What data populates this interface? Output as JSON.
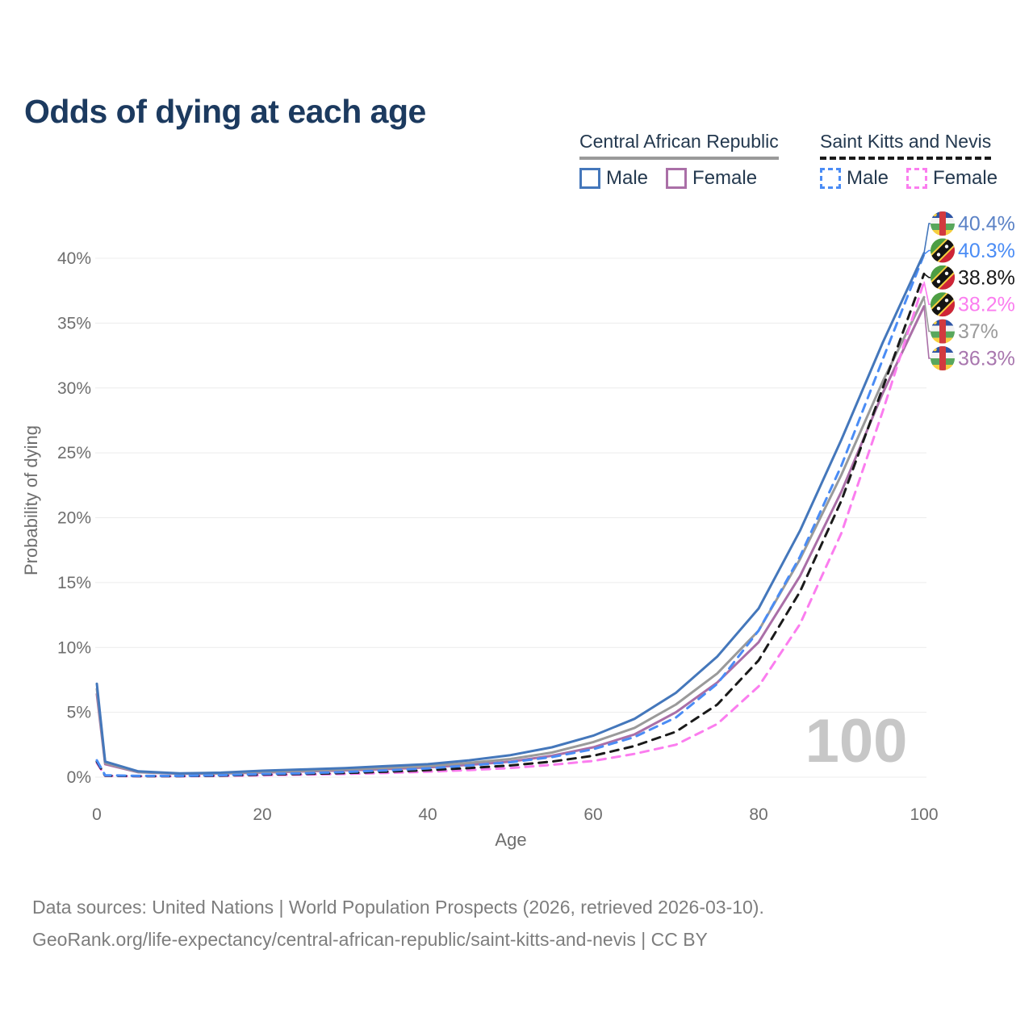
{
  "title": "Odds of dying at each age",
  "legend": {
    "car": {
      "name": "Central African Republic",
      "male_label": "Male",
      "female_label": "Female",
      "underline_color": "#9a9a9a",
      "male_color": "#4477bb",
      "female_color": "#aa6fa7",
      "line_style": "solid"
    },
    "skn": {
      "name": "Saint Kitts and Nevis",
      "male_label": "Male",
      "female_label": "Female",
      "underline_color": "#1a1a1a",
      "male_color": "#4a8cf5",
      "female_color": "#fb7def",
      "line_style": "dashed"
    }
  },
  "watermark": "100",
  "chart_data": {
    "type": "line",
    "title": "Odds of dying at each age",
    "xlabel": "Age",
    "ylabel": "Probability of dying",
    "x_ticks": [
      0,
      20,
      40,
      60,
      80,
      100
    ],
    "y_tick_labels": [
      "0%",
      "5%",
      "10%",
      "15%",
      "20%",
      "25%",
      "30%",
      "35%",
      "40%"
    ],
    "y_tick_values": [
      0,
      5,
      10,
      15,
      20,
      25,
      30,
      35,
      40
    ],
    "xlim": [
      0,
      100
    ],
    "ylim_pct": [
      0,
      42
    ],
    "grid": true,
    "legend_position": "top-right",
    "ages": [
      0,
      1,
      5,
      10,
      15,
      20,
      25,
      30,
      35,
      40,
      45,
      50,
      55,
      60,
      65,
      70,
      75,
      80,
      85,
      90,
      95,
      100
    ],
    "series": [
      {
        "name": "Central African Republic Female",
        "country": "car",
        "sex": "female",
        "color": "#aa6fa7",
        "dash": "solid",
        "end_label": "36.3%",
        "end_label_color": "#a876ae",
        "label_row": 5,
        "values": [
          6.4,
          1.0,
          0.38,
          0.26,
          0.28,
          0.36,
          0.44,
          0.52,
          0.62,
          0.75,
          0.95,
          1.2,
          1.65,
          2.3,
          3.3,
          5.0,
          7.3,
          10.4,
          15.5,
          22.0,
          29.6,
          36.3
        ]
      },
      {
        "name": "Central African Republic Both sexes",
        "country": "car",
        "sex": "both",
        "color": "#9a9a9a",
        "dash": "solid",
        "end_label": "37%",
        "end_label_color": "#9a9a9a",
        "label_row": 4,
        "values": [
          6.8,
          1.1,
          0.4,
          0.28,
          0.3,
          0.42,
          0.5,
          0.6,
          0.72,
          0.85,
          1.1,
          1.4,
          1.9,
          2.7,
          3.8,
          5.6,
          8.0,
          11.3,
          16.8,
          23.3,
          30.5,
          37.0
        ]
      },
      {
        "name": "Saint Kitts and Nevis Female",
        "country": "skn",
        "sex": "female",
        "color": "#fb7def",
        "dash": "dashed",
        "end_label": "38.2%",
        "end_label_color": "#fb7def",
        "label_row": 3,
        "values": [
          1.1,
          0.1,
          0.07,
          0.07,
          0.1,
          0.15,
          0.2,
          0.25,
          0.33,
          0.42,
          0.55,
          0.7,
          0.95,
          1.25,
          1.8,
          2.5,
          4.1,
          7.0,
          11.8,
          18.8,
          28.2,
          38.2
        ]
      },
      {
        "name": "Saint Kitts and Nevis Both sexes",
        "country": "skn",
        "sex": "both",
        "color": "#1a1a1a",
        "dash": "dashed",
        "end_label": "38.8%",
        "end_label_color": "#1a1a1a",
        "label_row": 2,
        "values": [
          1.2,
          0.12,
          0.08,
          0.08,
          0.12,
          0.2,
          0.25,
          0.32,
          0.42,
          0.54,
          0.7,
          0.9,
          1.2,
          1.65,
          2.4,
          3.5,
          5.6,
          9.0,
          14.3,
          21.3,
          30.0,
          38.8
        ]
      },
      {
        "name": "Saint Kitts and Nevis Male",
        "country": "skn",
        "sex": "male",
        "color": "#4a8cf5",
        "dash": "dashed",
        "end_label": "40.3%",
        "end_label_color": "#4a8cf5",
        "label_row": 1,
        "values": [
          1.3,
          0.15,
          0.1,
          0.1,
          0.15,
          0.25,
          0.3,
          0.4,
          0.52,
          0.68,
          0.9,
          1.15,
          1.55,
          2.15,
          3.1,
          4.6,
          7.2,
          11.3,
          17.0,
          24.0,
          32.2,
          40.3
        ]
      },
      {
        "name": "Central African Republic Male",
        "country": "car",
        "sex": "male",
        "color": "#4477bb",
        "dash": "solid",
        "end_label": "40.4%",
        "end_label_color": "#5b82c6",
        "label_row": 0,
        "values": [
          7.2,
          1.2,
          0.45,
          0.3,
          0.35,
          0.5,
          0.6,
          0.7,
          0.85,
          1.0,
          1.3,
          1.7,
          2.3,
          3.2,
          4.5,
          6.5,
          9.3,
          13.0,
          19.0,
          26.0,
          33.5,
          40.4
        ]
      }
    ]
  },
  "footer": {
    "line1": "Data sources: United Nations | World Population Prospects (2026, retrieved 2026-03-10).",
    "line2": "GeoRank.org/life-expectancy/central-african-republic/saint-kitts-and-nevis | CC BY"
  }
}
